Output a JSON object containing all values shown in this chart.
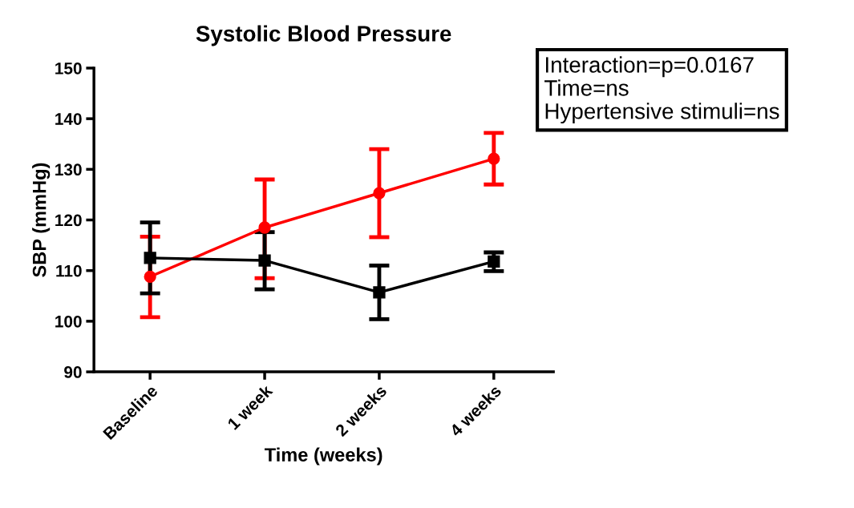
{
  "chart_data": {
    "type": "line",
    "title": "Systolic Blood Pressure",
    "xlabel": "Time (weeks)",
    "ylabel": "SBP (mmHg)",
    "categories": [
      "Baseline",
      "1 week",
      "2 weeks",
      "4 weeks"
    ],
    "series": [
      {
        "color": "#ff0000",
        "marker": "circle",
        "values": [
          108.8,
          118.5,
          125.3,
          132.1
        ],
        "errors": [
          [
            100.8,
            116.7
          ],
          [
            108.5,
            128.0
          ],
          [
            116.6,
            134.0
          ],
          [
            127.0,
            137.2
          ]
        ]
      },
      {
        "color": "#000000",
        "marker": "square",
        "values": [
          112.5,
          112.0,
          105.7,
          111.8
        ],
        "errors": [
          [
            105.5,
            119.5
          ],
          [
            106.3,
            117.6
          ],
          [
            100.4,
            111.0
          ],
          [
            109.9,
            113.6
          ]
        ]
      }
    ],
    "ylim": [
      90,
      150
    ],
    "yticks": [
      90,
      100,
      110,
      120,
      130,
      140,
      150
    ],
    "grid": false,
    "legend": false,
    "annotations": [
      "Interaction=p=0.0167",
      "Time=ns",
      "Hypertensive stimuli=ns"
    ]
  }
}
